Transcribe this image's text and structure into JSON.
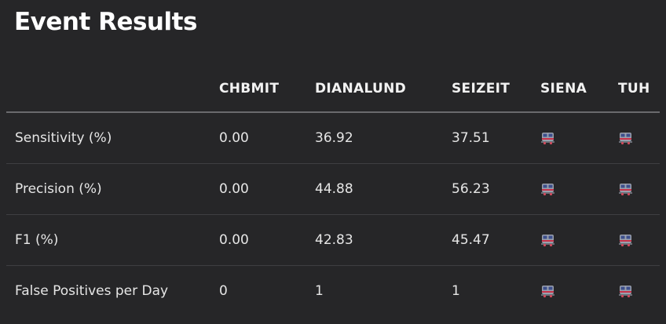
{
  "title": "Event Results",
  "table": {
    "columns": [
      "",
      "CHBMIT",
      "DIANALUND",
      "SEIZEIT",
      "SIENA",
      "TUH"
    ],
    "rows": [
      {
        "metric": "Sensitivity (%)",
        "chbmit": "0.00",
        "dianalund": "36.92",
        "seizeit": "37.51",
        "siena": "train-icon",
        "tuh": "train-icon"
      },
      {
        "metric": "Precision (%)",
        "chbmit": "0.00",
        "dianalund": "44.88",
        "seizeit": "56.23",
        "siena": "train-icon",
        "tuh": "train-icon"
      },
      {
        "metric": "F1 (%)",
        "chbmit": "0.00",
        "dianalund": "42.83",
        "seizeit": "45.47",
        "siena": "train-icon",
        "tuh": "train-icon"
      },
      {
        "metric": "False Positives per Day",
        "chbmit": "0",
        "dianalund": "1",
        "seizeit": "1",
        "siena": "train-icon",
        "tuh": "train-icon"
      }
    ]
  },
  "colors": {
    "background": "#262628",
    "text": "#e6e6e6",
    "header_rule": "#6a6a6d",
    "row_rule": "#3e3e41"
  }
}
